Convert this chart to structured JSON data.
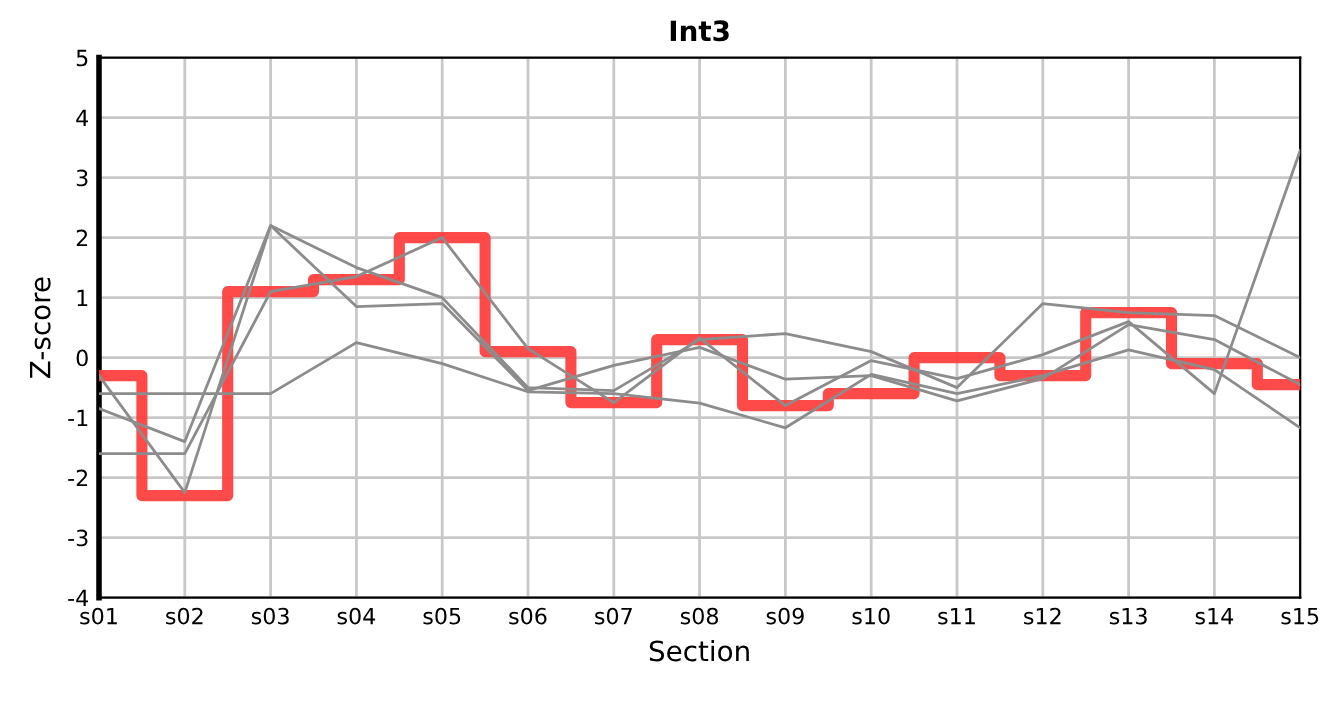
{
  "chart_data": {
    "type": "line",
    "title": "Int3",
    "xlabel": "Section",
    "ylabel": "Z-score",
    "categories": [
      "s01",
      "s02",
      "s03",
      "s04",
      "s05",
      "s06",
      "s07",
      "s08",
      "s09",
      "s10",
      "s11",
      "s12",
      "s13",
      "s14",
      "s15"
    ],
    "ylim": [
      -4,
      5
    ],
    "yticks": [
      -4,
      -3,
      -2,
      -1,
      0,
      1,
      2,
      3,
      4,
      5
    ],
    "grid": true,
    "line_style": "solid",
    "series": [
      {
        "color": "#8c8c8c",
        "values": [
          -0.3,
          -2.25,
          2.2,
          1.5,
          1.0,
          -0.5,
          -0.55,
          0.3,
          0.4,
          0.1,
          -0.5,
          0.9,
          0.75,
          0.7,
          0.0
        ]
      },
      {
        "color": "#8c8c8c",
        "values": [
          -0.85,
          -1.4,
          2.2,
          0.85,
          0.9,
          -0.55,
          -0.13,
          0.17,
          -0.36,
          -0.3,
          -0.72,
          -0.35,
          0.55,
          0.3,
          -0.45
        ]
      },
      {
        "color": "#8c8c8c",
        "values": [
          -1.6,
          -1.6,
          1.1,
          1.35,
          2.0,
          0.15,
          -0.75,
          0.33,
          -0.8,
          -0.05,
          -0.35,
          0.05,
          0.6,
          -0.6,
          3.45
        ]
      },
      {
        "color": "#8c8c8c",
        "values": [
          -0.6,
          -0.6,
          -0.6,
          0.25,
          -0.1,
          -0.57,
          -0.6,
          -0.76,
          -1.17,
          -0.28,
          -0.6,
          -0.3,
          0.13,
          -0.2,
          -1.17
        ]
      },
      {
        "type": "step",
        "color": "#ff4040",
        "values": [
          -0.3,
          -2.3,
          1.1,
          1.3,
          2.0,
          0.1,
          -0.75,
          0.3,
          -0.8,
          -0.6,
          0.0,
          -0.3,
          0.75,
          -0.1,
          -0.45
        ]
      }
    ]
  }
}
